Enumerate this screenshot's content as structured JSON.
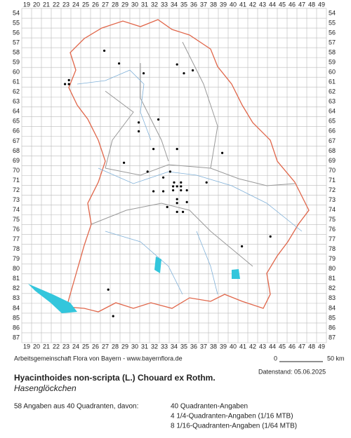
{
  "map": {
    "columns": [
      19,
      20,
      21,
      22,
      23,
      24,
      25,
      26,
      27,
      28,
      29,
      30,
      31,
      32,
      33,
      34,
      35,
      36,
      37,
      38,
      39,
      40,
      41,
      42,
      43,
      44,
      45,
      46,
      47,
      48,
      49
    ],
    "rows": [
      54,
      55,
      56,
      57,
      58,
      59,
      60,
      61,
      62,
      63,
      64,
      65,
      66,
      67,
      68,
      69,
      70,
      71,
      72,
      73,
      74,
      75,
      76,
      77,
      78,
      79,
      80,
      81,
      82,
      83,
      84,
      85,
      86,
      87
    ],
    "points": [
      {
        "x": 26.9,
        "y": 57.8
      },
      {
        "x": 28.4,
        "y": 59.1
      },
      {
        "x": 30.9,
        "y": 60.1
      },
      {
        "x": 34.3,
        "y": 59.2
      },
      {
        "x": 35.0,
        "y": 60.1
      },
      {
        "x": 35.9,
        "y": 59.8
      },
      {
        "x": 23.3,
        "y": 60.8
      },
      {
        "x": 23.3,
        "y": 61.2
      },
      {
        "x": 22.9,
        "y": 61.2
      },
      {
        "x": 30.4,
        "y": 65.1
      },
      {
        "x": 30.4,
        "y": 66.0
      },
      {
        "x": 32.4,
        "y": 64.8
      },
      {
        "x": 31.9,
        "y": 67.8
      },
      {
        "x": 34.3,
        "y": 67.8
      },
      {
        "x": 28.9,
        "y": 69.2
      },
      {
        "x": 38.9,
        "y": 68.2
      },
      {
        "x": 31.3,
        "y": 70.1
      },
      {
        "x": 33.6,
        "y": 70.1
      },
      {
        "x": 32.9,
        "y": 70.7
      },
      {
        "x": 34.0,
        "y": 71.2
      },
      {
        "x": 34.7,
        "y": 71.2
      },
      {
        "x": 33.9,
        "y": 71.6
      },
      {
        "x": 34.3,
        "y": 71.6
      },
      {
        "x": 34.7,
        "y": 71.6
      },
      {
        "x": 33.9,
        "y": 72.0
      },
      {
        "x": 34.7,
        "y": 72.0
      },
      {
        "x": 35.3,
        "y": 72.0
      },
      {
        "x": 31.9,
        "y": 72.1
      },
      {
        "x": 32.9,
        "y": 72.1
      },
      {
        "x": 34.3,
        "y": 72.9
      },
      {
        "x": 35.3,
        "y": 73.2
      },
      {
        "x": 34.3,
        "y": 73.3
      },
      {
        "x": 33.3,
        "y": 73.7
      },
      {
        "x": 34.3,
        "y": 74.2
      },
      {
        "x": 34.9,
        "y": 74.2
      },
      {
        "x": 37.3,
        "y": 71.2
      },
      {
        "x": 43.8,
        "y": 76.7
      },
      {
        "x": 40.9,
        "y": 77.7
      },
      {
        "x": 27.3,
        "y": 82.1
      },
      {
        "x": 27.8,
        "y": 84.8
      }
    ]
  },
  "credit": "Arbeitsgemeinschaft Flora von Bayern - www.bayernflora.de",
  "scale": {
    "start": "0",
    "end": "50 km"
  },
  "date": "Datenstand: 05.06.2025",
  "title": "Hyacinthoides non-scripta (L.) Chouard ex Rothm.",
  "subtitle": "Hasenglöckchen",
  "summary": "58 Angaben aus 40 Quadranten, davon:",
  "details": [
    "40 Quadranten-Angaben",
    "4 1/4-Quadranten-Angaben (1/16 MTB)",
    "8 1/16-Quadranten-Angaben (1/64 MTB)"
  ]
}
